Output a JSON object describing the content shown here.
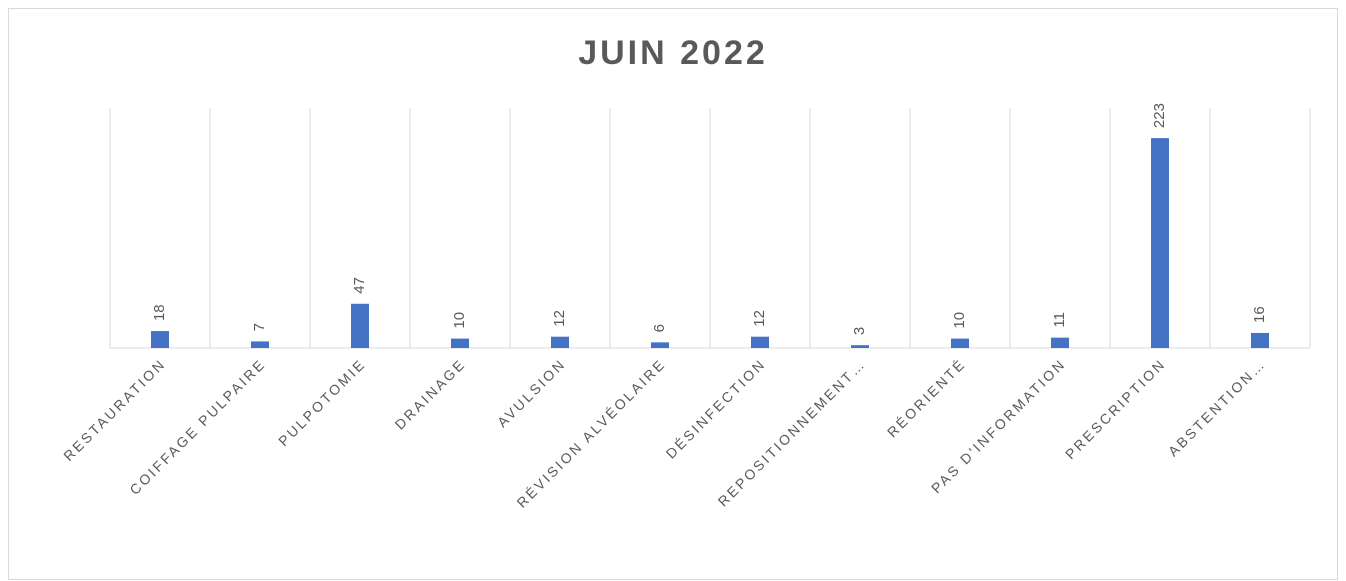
{
  "chart_data": {
    "type": "bar",
    "title": "JUIN 2022",
    "categories": [
      "RESTAURATION",
      "COIFFAGE PULPAIRE",
      "PULPOTOMIE",
      "DRAINAGE",
      "AVULSION",
      "RÉVISION ALVÉOLAIRE",
      "DÉSINFECTION",
      "REPOSITIONNEMENT…",
      "RÉORIENTÉ",
      "PAS D'INFORMATION",
      "PRESCRIPTION",
      "ABSTENTION…"
    ],
    "values": [
      18,
      7,
      47,
      10,
      12,
      6,
      12,
      3,
      10,
      11,
      223,
      16
    ],
    "color": "#4472c4",
    "ylim": [
      0,
      255
    ]
  }
}
